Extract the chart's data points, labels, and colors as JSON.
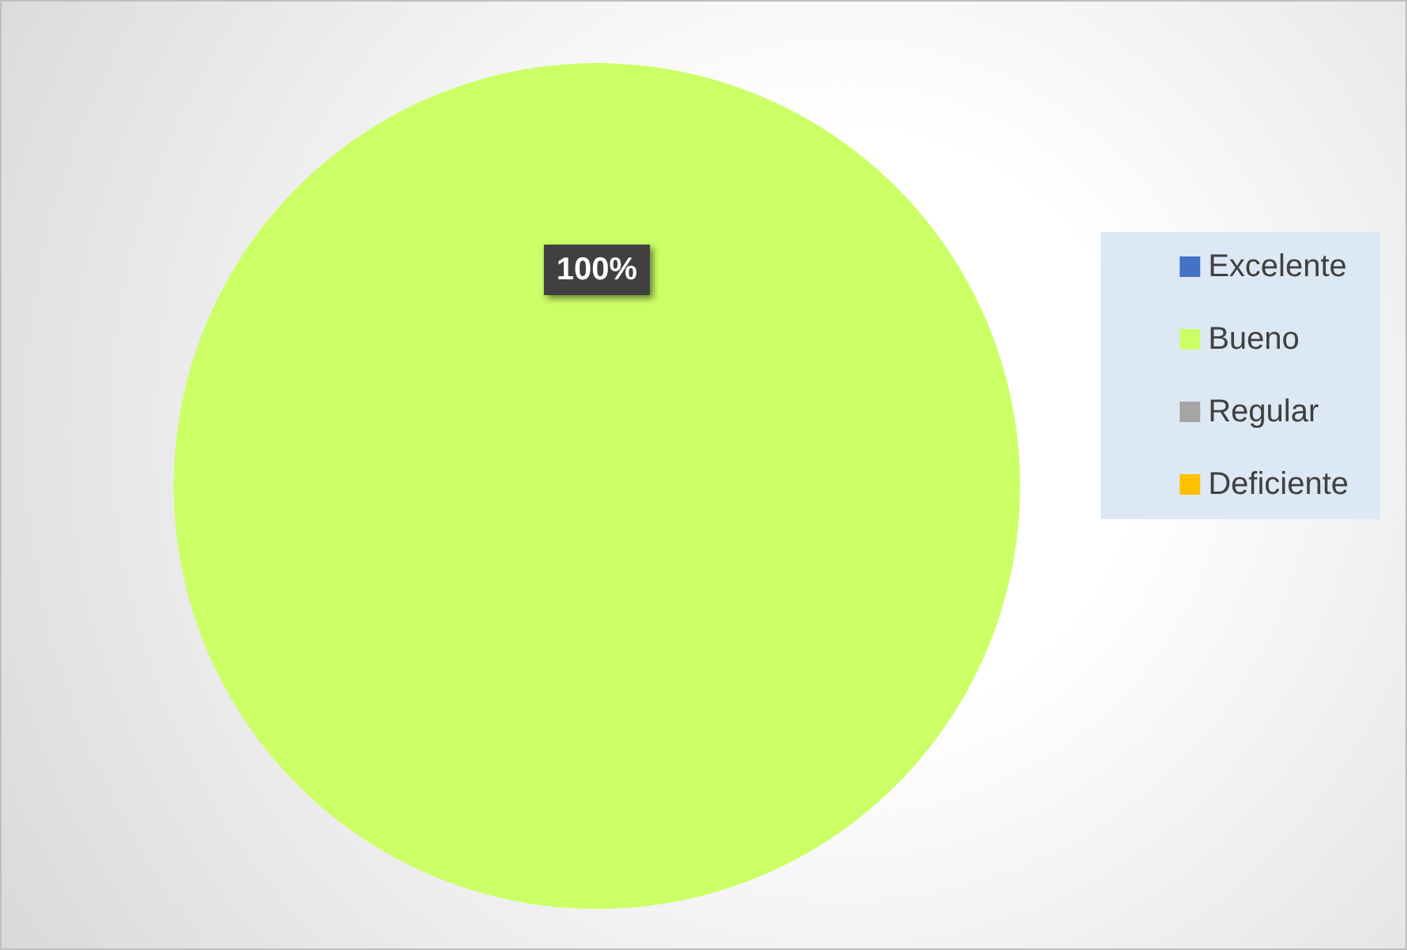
{
  "chart_data": {
    "type": "pie",
    "categories": [
      "Excelente",
      "Bueno",
      "Regular",
      "Deficiente"
    ],
    "values": [
      0,
      100,
      0,
      0
    ],
    "colors": [
      "#4472c4",
      "#ccff66",
      "#a5a5a5",
      "#ffc000"
    ],
    "value_labels": [
      null,
      "100%",
      null,
      null
    ],
    "legend": "right"
  }
}
